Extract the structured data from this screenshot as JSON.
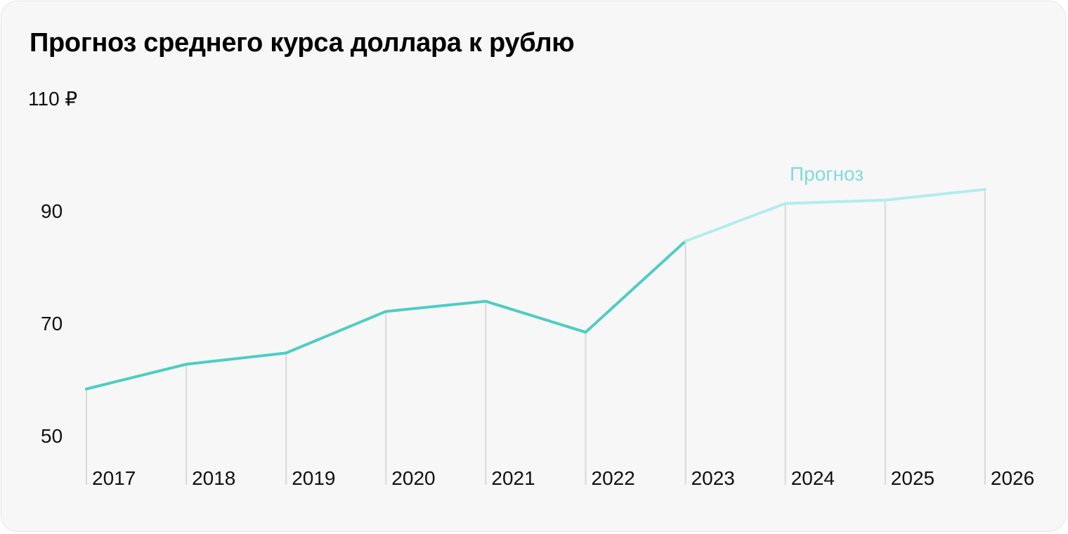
{
  "title": "Прогноз среднего курса доллара к рублю",
  "chart_data": {
    "type": "line",
    "title": "Прогноз среднего курса доллара к рублю",
    "xlabel": "",
    "ylabel": "",
    "categories": [
      "2017",
      "2018",
      "2019",
      "2020",
      "2021",
      "2022",
      "2023",
      "2024",
      "2025",
      "2026"
    ],
    "y_ticks": [
      {
        "value": 50,
        "label": "50"
      },
      {
        "value": 70,
        "label": "70"
      },
      {
        "value": 90,
        "label": "90"
      },
      {
        "value": 110,
        "label": "110 ₽"
      }
    ],
    "ylim": [
      50,
      110
    ],
    "grid": "vertical",
    "series": [
      {
        "values": [
          58.3,
          62.7,
          64.7,
          72.1,
          73.9,
          68.4,
          84.6,
          null,
          null,
          null
        ],
        "color": "#4ecdc4"
      },
      {
        "values": [
          null,
          null,
          null,
          null,
          null,
          null,
          84.6,
          91.3,
          91.9,
          93.8
        ],
        "color": "#b3ecec"
      }
    ],
    "annotations": [
      {
        "text": "Прогноз",
        "color": "#7fdcdc"
      }
    ]
  }
}
